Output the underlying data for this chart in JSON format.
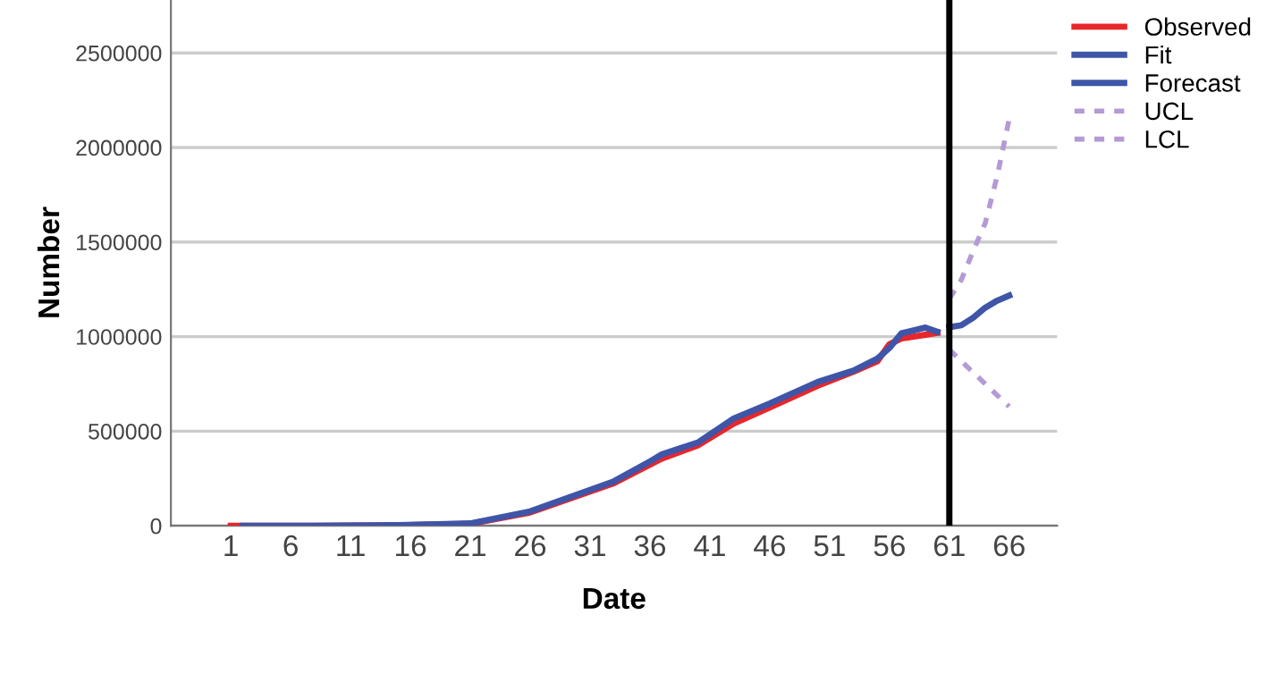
{
  "chart_data": {
    "type": "line",
    "xlabel": "Date",
    "ylabel": "Number",
    "xlim": [
      -4,
      70
    ],
    "xticks": [
      1,
      6,
      11,
      16,
      21,
      26,
      31,
      36,
      41,
      46,
      51,
      56,
      61,
      66
    ],
    "ylim": [
      0,
      2780000
    ],
    "yticks": [
      0,
      500000,
      1000000,
      1500000,
      2000000,
      2500000
    ],
    "grid": "y",
    "legend": "top right",
    "marker": "none",
    "ref_lines": [
      {
        "axis": "x",
        "value": 61,
        "color": "#000000"
      }
    ],
    "series": [
      {
        "name": "Observed",
        "color": "#e8262b",
        "line_style": "solid",
        "x": [
          1,
          8,
          15,
          21,
          26,
          33,
          37,
          40,
          43,
          46,
          50,
          53,
          55,
          56,
          57,
          58,
          59,
          60
        ],
        "values": [
          0,
          0,
          2000,
          10000,
          70000,
          225000,
          355000,
          425000,
          540000,
          625000,
          740000,
          815000,
          870000,
          960000,
          990000,
          1000000,
          1010000,
          1020000
        ]
      },
      {
        "name": "Fit",
        "color": "#3e55a8",
        "line_style": "solid",
        "x": [
          2,
          8,
          15,
          21,
          26,
          33,
          36,
          37,
          40,
          43,
          46,
          50,
          53,
          55,
          56,
          57,
          59,
          60
        ],
        "values": [
          0,
          0,
          3000,
          12000,
          76000,
          235000,
          340000,
          377000,
          440000,
          567000,
          646000,
          760000,
          820000,
          884000,
          940000,
          1017000,
          1048000,
          1026000
        ]
      },
      {
        "name": "Forecast",
        "color": "#3e55a8",
        "line_style": "solid",
        "x": [
          61,
          62,
          63,
          64,
          65,
          66
        ],
        "values": [
          1050000,
          1060000,
          1100000,
          1153000,
          1190000,
          1217000
        ]
      },
      {
        "name": "UCL",
        "color": "#b49ad6",
        "line_style": "dotted",
        "x": [
          61,
          62,
          63,
          64,
          65,
          66
        ],
        "values": [
          1200000,
          1300000,
          1454000,
          1600000,
          1850000,
          2151000
        ]
      },
      {
        "name": "LCL",
        "color": "#b49ad6",
        "line_style": "dotted",
        "x": [
          61,
          62,
          63,
          64,
          65,
          66
        ],
        "values": [
          931000,
          870000,
          810000,
          750000,
          690000,
          630000
        ]
      }
    ]
  }
}
